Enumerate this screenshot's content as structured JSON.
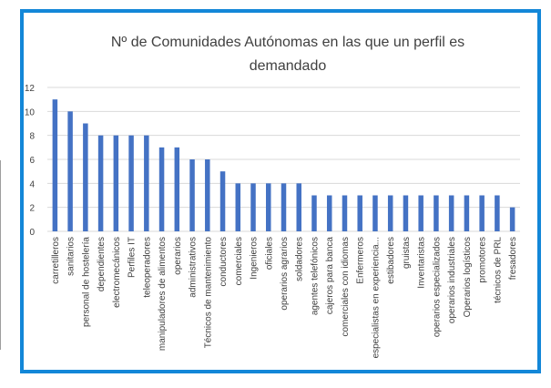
{
  "chart_data": {
    "type": "bar",
    "title_lines": [
      "Nº de Comunidades Autónomas en las que un perfil es",
      "demandado"
    ],
    "xlabel": "",
    "ylabel": "",
    "ylim": [
      0,
      12
    ],
    "yticks": [
      0,
      2,
      4,
      6,
      8,
      10,
      12
    ],
    "grid": true,
    "bar_color": "#4472c4",
    "categories": [
      "carretilleros",
      "sanitarios",
      "personal de hostelería",
      "dependientes",
      "electromecánicos",
      "Perfiles IT",
      "teleoperadores",
      "manipuladores de alimentos",
      "operarios",
      "administrativos",
      "Técnicos de mantenimiento",
      "conductores",
      "comerciales",
      "Ingenieros",
      "oficiales",
      "operarios agrarios",
      "soldadores",
      "agentes telefónicos",
      "cajeros para banca",
      "comerciales con idiomas",
      "Enfermeros",
      "especialistas en experiencia...",
      "estibadores",
      "gruistas",
      "Inventaristas",
      "operarios especializados",
      "operarios industriales",
      "Operarios logísticos",
      "promotores",
      "técnicos de PRL",
      "fresadores"
    ],
    "values": [
      11,
      10,
      9,
      8,
      8,
      8,
      8,
      7,
      7,
      6,
      6,
      5,
      4,
      4,
      4,
      4,
      4,
      3,
      3,
      3,
      3,
      3,
      3,
      3,
      3,
      3,
      3,
      3,
      3,
      3,
      2
    ]
  }
}
